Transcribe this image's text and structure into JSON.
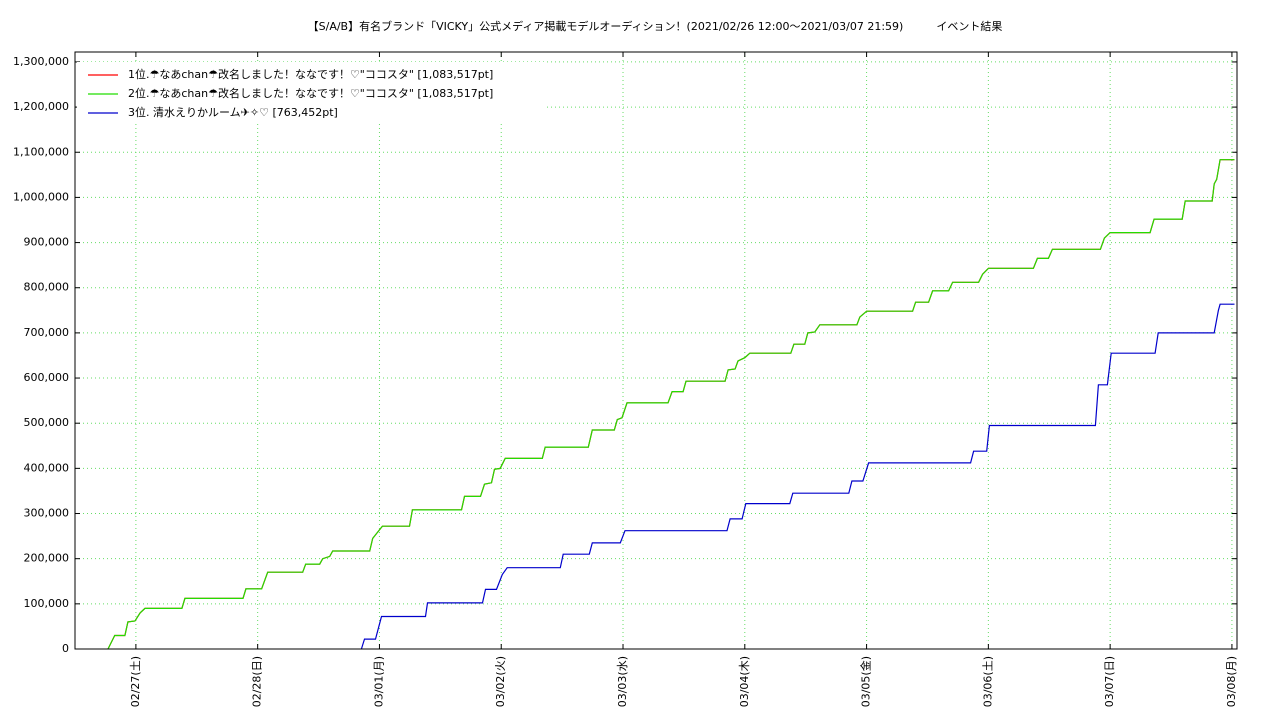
{
  "chart_data": {
    "type": "line",
    "title": "【S/A/B】有名ブランド「VICKY」公式メディア掲載モデルオーディション！(2021/02/26 12:00〜2021/03/07 21:59)　　　イベント結果",
    "xlim": [
      "02/26 12:00",
      "03/08 01:00"
    ],
    "xticks": [
      {
        "value": "02/27 00:00",
        "label": "02/27(土)"
      },
      {
        "value": "02/28 00:00",
        "label": "02/28(日)"
      },
      {
        "value": "03/01 00:00",
        "label": "03/01(月)"
      },
      {
        "value": "03/02 00:00",
        "label": "03/02(火)"
      },
      {
        "value": "03/03 00:00",
        "label": "03/03(水)"
      },
      {
        "value": "03/04 00:00",
        "label": "03/04(木)"
      },
      {
        "value": "03/05 00:00",
        "label": "03/05(金)"
      },
      {
        "value": "03/06 00:00",
        "label": "03/06(土)"
      },
      {
        "value": "03/07 00:00",
        "label": "03/07(日)"
      },
      {
        "value": "03/08 00:00",
        "label": "03/08(月)"
      }
    ],
    "ylim": [
      0,
      1322000
    ],
    "yticks": [
      0,
      {
        "value": 100000,
        "label": "100,000"
      },
      {
        "value": 200000,
        "label": "200,000"
      },
      {
        "value": 300000,
        "label": "300,000"
      },
      {
        "value": 400000,
        "label": "400,000"
      },
      {
        "value": 500000,
        "label": "500,000"
      },
      {
        "value": 600000,
        "label": "600,000"
      },
      {
        "value": 700000,
        "label": "700,000"
      },
      {
        "value": 800000,
        "label": "800,000"
      },
      {
        "value": 900000,
        "label": "900,000"
      },
      {
        "value": 1000000,
        "label": "1,000,000"
      },
      {
        "value": 1100000,
        "label": "1,100,000"
      },
      {
        "value": 1200000,
        "label": "1,200,000"
      },
      {
        "value": 1300000,
        "label": "1,300,000"
      }
    ],
    "grid": true,
    "legend": "upper left",
    "series": [
      {
        "name": "1位.☂なあchan☂改名しました！ななです！♡\"ココスタ\" [1,083,517pt]",
        "color": "#ff0000",
        "x": [
          "02/26 18:30",
          "02/26 19:50",
          "02/26 21:50",
          "02/26 22:25",
          "02/26 23:50",
          "02/27 00:50",
          "02/27 01:46",
          "02/27 09:04",
          "02/27 09:40",
          "02/27 21:06",
          "02/27 21:41",
          "02/28 00:47",
          "02/28 01:58",
          "02/28 08:52",
          "02/28 09:28",
          "02/28 12:13",
          "02/28 12:49",
          "02/28 14:12",
          "02/28 14:47",
          "02/28 22:05",
          "02/28 22:40",
          "03/01 00:35",
          "03/01 05:55",
          "03/01 06:30",
          "03/01 16:10",
          "03/01 16:46",
          "03/01 19:55",
          "03/01 20:42",
          "03/01 22:05",
          "03/01 22:40",
          "03/01 23:48",
          "03/02 00:47",
          "03/02 08:05",
          "03/02 08:40",
          "03/02 17:09",
          "03/02 17:57",
          "03/02 22:17",
          "03/02 22:52",
          "03/02 23:48",
          "03/03 00:47",
          "03/03 08:52",
          "03/03 09:40",
          "03/03 11:50",
          "03/03 12:25",
          "03/03 20:07",
          "03/03 20:42",
          "03/03 22:05",
          "03/03 22:40",
          "03/04 00:00",
          "03/04 00:59",
          "03/04 09:04",
          "03/04 09:40",
          "03/04 11:50",
          "03/04 12:25",
          "03/04 13:48",
          "03/04 14:47",
          "03/04 22:05",
          "03/04 22:40",
          "03/05 00:00",
          "03/05 09:04",
          "03/05 09:40",
          "03/05 12:13",
          "03/05 13:01",
          "03/05 16:10",
          "03/05 16:57",
          "03/05 22:05",
          "03/05 22:52",
          "03/06 00:00",
          "03/06 08:52",
          "03/06 09:40",
          "03/06 11:50",
          "03/06 12:37",
          "03/06 22:05",
          "03/06 22:52",
          "03/07 00:00",
          "03/07 07:53",
          "03/07 08:40",
          "03/07 14:12",
          "03/07 14:47",
          "03/07 20:07",
          "03/07 20:30",
          "03/07 21:00",
          "03/07 21:40",
          "03/08 00:30"
        ],
        "values": [
          0,
          30000,
          30000,
          60000,
          62000,
          80000,
          90000,
          90000,
          112000,
          112000,
          133000,
          133000,
          170000,
          170000,
          188000,
          188000,
          200000,
          205000,
          217000,
          217000,
          245000,
          272000,
          272000,
          308000,
          308000,
          338000,
          338000,
          365000,
          368000,
          398000,
          400000,
          422000,
          422000,
          447000,
          447000,
          485000,
          485000,
          508000,
          512000,
          545000,
          545000,
          570000,
          570000,
          593000,
          593000,
          618000,
          620000,
          638000,
          645000,
          655000,
          655000,
          675000,
          675000,
          700000,
          702000,
          718000,
          718000,
          735000,
          748000,
          748000,
          768000,
          768000,
          793000,
          793000,
          812000,
          812000,
          830000,
          843000,
          843000,
          865000,
          865000,
          885000,
          885000,
          910000,
          922000,
          922000,
          952000,
          952000,
          992000,
          992000,
          1030000,
          1040000,
          1083517,
          1083517
        ]
      },
      {
        "name": "2位.☂なあchan☂改名しました！ななです！♡\"ココスタ\" [1,083,517pt]",
        "color": "#22dd00",
        "x": [
          "02/26 18:30",
          "02/26 19:50",
          "02/26 21:50",
          "02/26 22:25",
          "02/26 23:50",
          "02/27 00:50",
          "02/27 01:46",
          "02/27 09:04",
          "02/27 09:40",
          "02/27 21:06",
          "02/27 21:41",
          "02/28 00:47",
          "02/28 01:58",
          "02/28 08:52",
          "02/28 09:28",
          "02/28 12:13",
          "02/28 12:49",
          "02/28 14:12",
          "02/28 14:47",
          "02/28 22:05",
          "02/28 22:40",
          "03/01 00:35",
          "03/01 05:55",
          "03/01 06:30",
          "03/01 16:10",
          "03/01 16:46",
          "03/01 19:55",
          "03/01 20:42",
          "03/01 22:05",
          "03/01 22:40",
          "03/01 23:48",
          "03/02 00:47",
          "03/02 08:05",
          "03/02 08:40",
          "03/02 17:09",
          "03/02 17:57",
          "03/02 22:17",
          "03/02 22:52",
          "03/02 23:48",
          "03/03 00:47",
          "03/03 08:52",
          "03/03 09:40",
          "03/03 11:50",
          "03/03 12:25",
          "03/03 20:07",
          "03/03 20:42",
          "03/03 22:05",
          "03/03 22:40",
          "03/04 00:00",
          "03/04 00:59",
          "03/04 09:04",
          "03/04 09:40",
          "03/04 11:50",
          "03/04 12:25",
          "03/04 13:48",
          "03/04 14:47",
          "03/04 22:05",
          "03/04 22:40",
          "03/05 00:00",
          "03/05 09:04",
          "03/05 09:40",
          "03/05 12:13",
          "03/05 13:01",
          "03/05 16:10",
          "03/05 16:57",
          "03/05 22:05",
          "03/05 22:52",
          "03/06 00:00",
          "03/06 08:52",
          "03/06 09:40",
          "03/06 11:50",
          "03/06 12:37",
          "03/06 22:05",
          "03/06 22:52",
          "03/07 00:00",
          "03/07 07:53",
          "03/07 08:40",
          "03/07 14:12",
          "03/07 14:47",
          "03/07 20:07",
          "03/07 20:30",
          "03/07 21:00",
          "03/07 21:40",
          "03/08 00:30"
        ],
        "values": [
          0,
          30000,
          30000,
          60000,
          62000,
          80000,
          90000,
          90000,
          112000,
          112000,
          133000,
          133000,
          170000,
          170000,
          188000,
          188000,
          200000,
          205000,
          217000,
          217000,
          245000,
          272000,
          272000,
          308000,
          308000,
          338000,
          338000,
          365000,
          368000,
          398000,
          400000,
          422000,
          422000,
          447000,
          447000,
          485000,
          485000,
          508000,
          512000,
          545000,
          545000,
          570000,
          570000,
          593000,
          593000,
          618000,
          620000,
          638000,
          645000,
          655000,
          655000,
          675000,
          675000,
          700000,
          702000,
          718000,
          718000,
          735000,
          748000,
          748000,
          768000,
          768000,
          793000,
          793000,
          812000,
          812000,
          830000,
          843000,
          843000,
          865000,
          865000,
          885000,
          885000,
          910000,
          922000,
          922000,
          952000,
          952000,
          992000,
          992000,
          1030000,
          1040000,
          1083517,
          1083517
        ]
      },
      {
        "name": "3位. 清水えりかルーム✈✧♡ [763,452pt]",
        "color": "#0000cc",
        "x": [
          "02/28 20:27",
          "02/28 21:03",
          "02/28 23:13",
          "03/01 00:24",
          "03/01 09:04",
          "03/01 09:28",
          "03/01 20:19",
          "03/01 20:54",
          "03/01 23:04",
          "03/02 00:12",
          "03/02 01:11",
          "03/02 11:38",
          "03/02 12:13",
          "03/02 17:21",
          "03/02 17:57",
          "03/02 23:28",
          "03/03 00:24",
          "03/03 20:30",
          "03/03 21:06",
          "03/03 23:28",
          "03/04 00:12",
          "03/04 08:52",
          "03/04 09:28",
          "03/04 20:30",
          "03/04 21:06",
          "03/04 23:16",
          "03/05 00:24",
          "03/05 20:30",
          "03/05 21:06",
          "03/05 23:40",
          "03/06 00:12",
          "03/06 21:06",
          "03/06 21:41",
          "03/06 23:28",
          "03/07 00:12",
          "03/07 08:52",
          "03/07 09:28",
          "03/07 20:30",
          "03/07 21:20",
          "03/07 21:40",
          "03/08 00:30"
        ],
        "values": [
          0,
          22000,
          22000,
          72000,
          72000,
          102000,
          102000,
          132000,
          132000,
          165000,
          180000,
          180000,
          210000,
          210000,
          235000,
          235000,
          262000,
          262000,
          288000,
          288000,
          322000,
          322000,
          345000,
          345000,
          372000,
          372000,
          412000,
          412000,
          438000,
          438000,
          495000,
          495000,
          585000,
          585000,
          655000,
          655000,
          700000,
          700000,
          750000,
          763452,
          763452
        ]
      }
    ]
  }
}
